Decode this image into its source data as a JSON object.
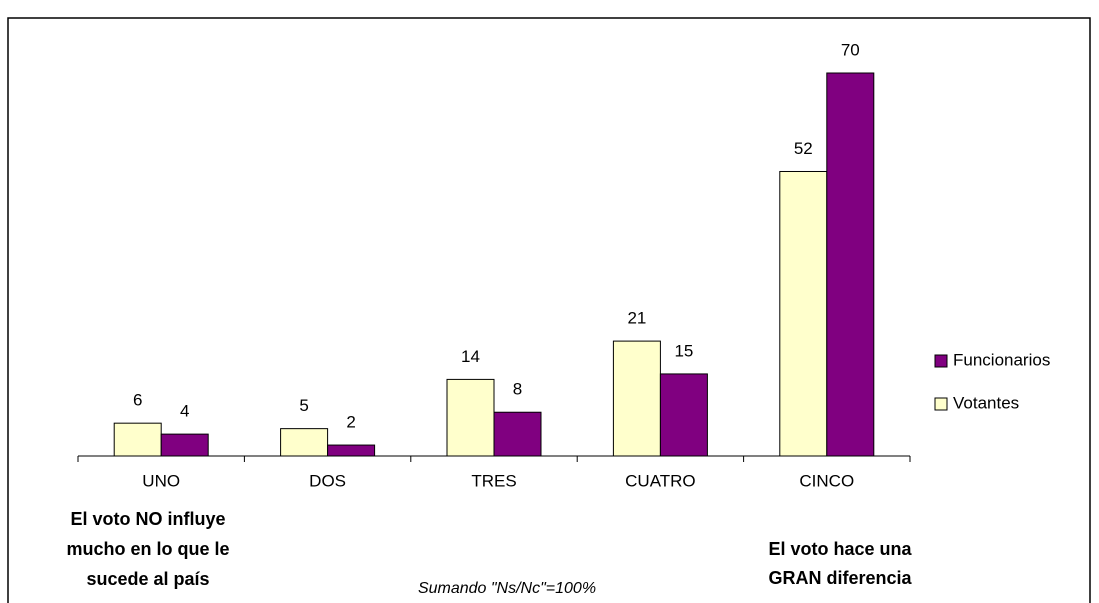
{
  "chart_data": {
    "type": "bar",
    "categories": [
      "UNO",
      "DOS",
      "TRES",
      "CUATRO",
      "CINCO"
    ],
    "series": [
      {
        "name": "Votantes",
        "color": "#ffffcc",
        "values": [
          6,
          5,
          14,
          21,
          52
        ]
      },
      {
        "name": "Funcionarios",
        "color": "#800080",
        "values": [
          4,
          2,
          8,
          15,
          70
        ]
      }
    ],
    "ylim": [
      0,
      70
    ],
    "legend": "right",
    "annotations": {
      "left": [
        "El voto NO influye",
        "mucho en lo que le",
        "sucede al país"
      ],
      "right": [
        "El voto hace una",
        "GRAN diferencia"
      ],
      "note": "Sumando \"Ns/Nc\"=100%"
    }
  }
}
